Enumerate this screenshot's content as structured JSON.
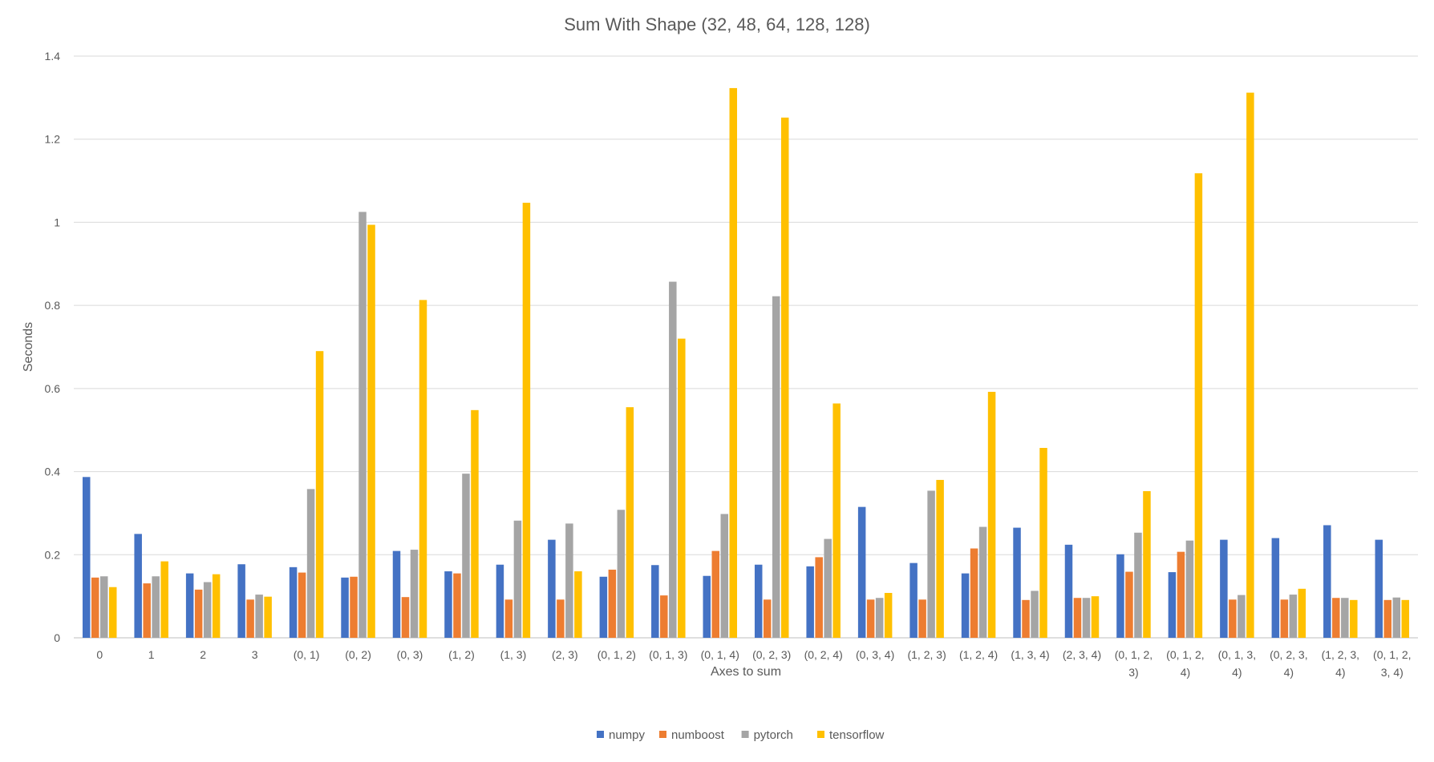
{
  "chart_data": {
    "type": "bar",
    "title": "Sum With Shape (32, 48, 64, 128, 128)",
    "xlabel": "Axes to sum",
    "ylabel": "Seconds",
    "ylim": [
      0,
      1.4
    ],
    "yticks": [
      0,
      0.2,
      0.4,
      0.6,
      0.8,
      1,
      1.2,
      1.4
    ],
    "ytick_labels": [
      "0",
      "0.2",
      "0.4",
      "0.6",
      "0.8",
      "1",
      "1.2",
      "1.4"
    ],
    "grid": true,
    "legend_position": "bottom",
    "categories": [
      "0",
      "1",
      "2",
      "3",
      "(0, 1)",
      "(0, 2)",
      "(0, 3)",
      "(1, 2)",
      "(1, 3)",
      "(2, 3)",
      "(0, 1, 2)",
      "(0, 1, 3)",
      "(0, 1, 4)",
      "(0, 2, 3)",
      "(0, 2, 4)",
      "(0, 3, 4)",
      "(1, 2, 3)",
      "(1, 2, 4)",
      "(1, 3, 4)",
      "(2, 3, 4)",
      "(0, 1, 2, 3)",
      "(0, 1, 2, 4)",
      "(0, 1, 3, 4)",
      "(0, 2, 3, 4)",
      "(1, 2, 3, 4)",
      "(0, 1, 2, 3, 4)"
    ],
    "category_label_lines": [
      [
        "0"
      ],
      [
        "1"
      ],
      [
        "2"
      ],
      [
        "3"
      ],
      [
        "(0, 1)"
      ],
      [
        "(0, 2)"
      ],
      [
        "(0, 3)"
      ],
      [
        "(1, 2)"
      ],
      [
        "(1, 3)"
      ],
      [
        "(2, 3)"
      ],
      [
        "(0, 1, 2)"
      ],
      [
        "(0, 1, 3)"
      ],
      [
        "(0, 1, 4)"
      ],
      [
        "(0, 2, 3)"
      ],
      [
        "(0, 2, 4)"
      ],
      [
        "(0, 3, 4)"
      ],
      [
        "(1, 2, 3)"
      ],
      [
        "(1, 2, 4)"
      ],
      [
        "(1, 3, 4)"
      ],
      [
        "(2, 3, 4)"
      ],
      [
        "(0, 1, 2,",
        "3)"
      ],
      [
        "(0, 1, 2,",
        "4)"
      ],
      [
        "(0, 1, 3,",
        "4)"
      ],
      [
        "(0, 2, 3,",
        "4)"
      ],
      [
        "(1, 2, 3,",
        "4)"
      ],
      [
        "(0, 1, 2,",
        "3, 4)"
      ]
    ],
    "series": [
      {
        "name": "numpy",
        "color": "#4472c4",
        "values": [
          0.387,
          0.25,
          0.155,
          0.177,
          0.17,
          0.145,
          0.209,
          0.16,
          0.176,
          0.236,
          0.147,
          0.175,
          0.149,
          0.176,
          0.172,
          0.315,
          0.18,
          0.155,
          0.265,
          0.224,
          0.201,
          0.158,
          0.236,
          0.24,
          0.271,
          0.236
        ]
      },
      {
        "name": "numboost",
        "color": "#ed7d31",
        "values": [
          0.145,
          0.131,
          0.116,
          0.092,
          0.157,
          0.147,
          0.098,
          0.155,
          0.092,
          0.092,
          0.164,
          0.102,
          0.209,
          0.092,
          0.194,
          0.092,
          0.092,
          0.215,
          0.091,
          0.096,
          0.159,
          0.207,
          0.092,
          0.092,
          0.096,
          0.091
        ]
      },
      {
        "name": "pytorch",
        "color": "#a5a5a5",
        "values": [
          0.148,
          0.148,
          0.134,
          0.104,
          0.358,
          1.025,
          0.212,
          0.395,
          0.282,
          0.275,
          0.308,
          0.857,
          0.298,
          0.822,
          0.238,
          0.096,
          0.354,
          0.267,
          0.113,
          0.096,
          0.253,
          0.234,
          0.103,
          0.104,
          0.096,
          0.097
        ]
      },
      {
        "name": "tensorflow",
        "color": "#ffc000",
        "values": [
          0.122,
          0.184,
          0.153,
          0.099,
          0.69,
          0.994,
          0.813,
          0.548,
          1.047,
          0.16,
          0.555,
          0.72,
          1.323,
          1.252,
          0.564,
          0.108,
          0.38,
          0.592,
          0.457,
          0.1,
          0.353,
          1.118,
          1.312,
          0.118,
          0.091,
          0.091
        ]
      }
    ]
  }
}
